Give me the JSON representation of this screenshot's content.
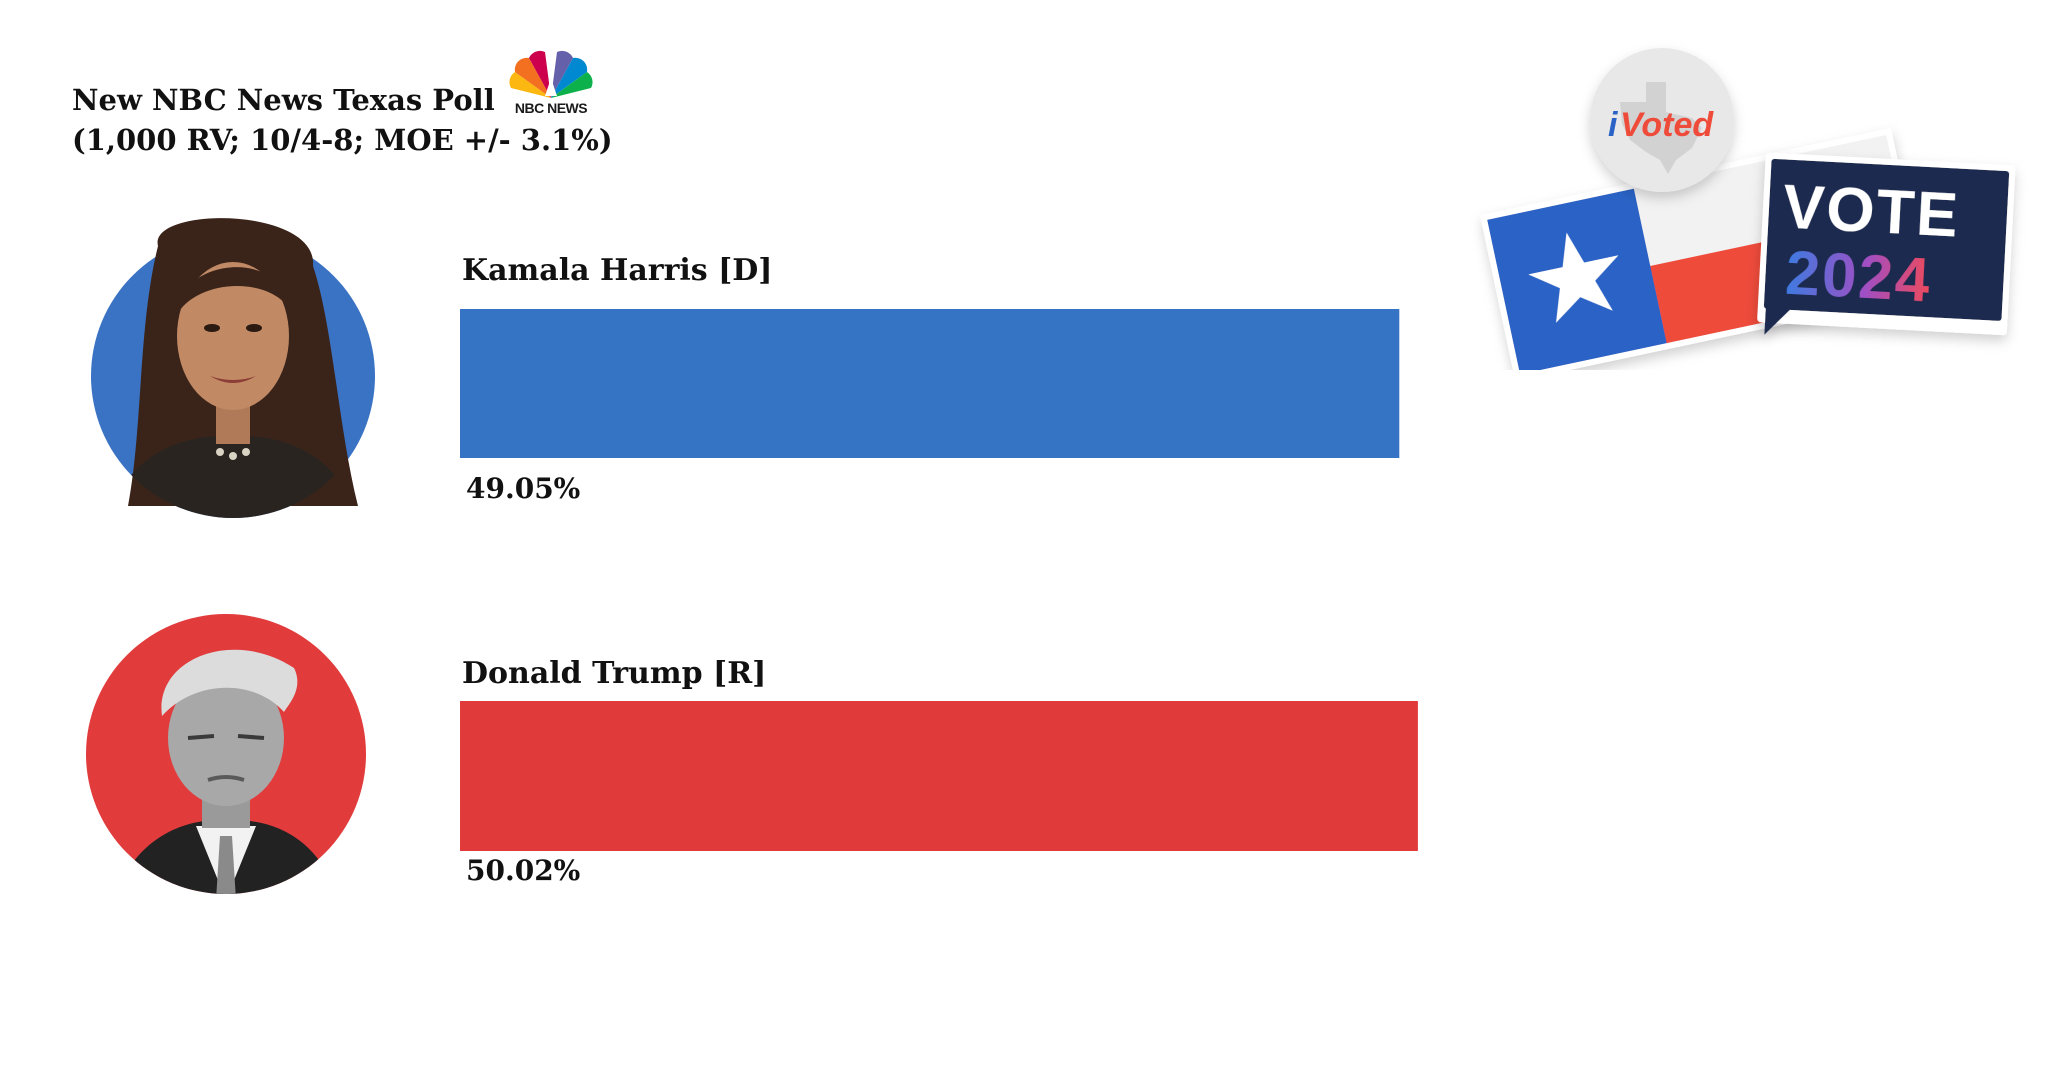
{
  "title": {
    "line1": "New NBC News Texas  Poll",
    "line2": "(1,000 RV; 10/4-8; MOE +/- 3.1%)"
  },
  "logo": {
    "text": "NBC NEWS",
    "icon": "nbc-peacock-icon"
  },
  "badges": {
    "voted_text_i": "i",
    "voted_text_rest": "Voted",
    "vote_label": "VOTE",
    "vote_year": "2024"
  },
  "candidates": [
    {
      "name": "Kamala Harris [D]",
      "percent_label": "49.05%",
      "color": "#3573c4",
      "avatar_bg": "#3a72c4",
      "photo": "harris-portrait"
    },
    {
      "name": "Donald Trump [R]",
      "percent_label": "50.02%",
      "color": "#e03a3b",
      "avatar_bg": "#e13b3c",
      "photo": "trump-portrait"
    }
  ],
  "chart_data": {
    "type": "bar",
    "orientation": "horizontal",
    "title": "New NBC News Texas  Poll",
    "subtitle": "(1,000 RV; 10/4-8; MOE +/- 3.1%)",
    "categories": [
      "Kamala Harris [D]",
      "Donald Trump [R]"
    ],
    "values": [
      49.05,
      50.02
    ],
    "value_labels": [
      "49.05%",
      "50.02%"
    ],
    "colors": [
      "#3573c4",
      "#e03a3b"
    ],
    "unit": "%",
    "grid": false,
    "legend": "none"
  }
}
